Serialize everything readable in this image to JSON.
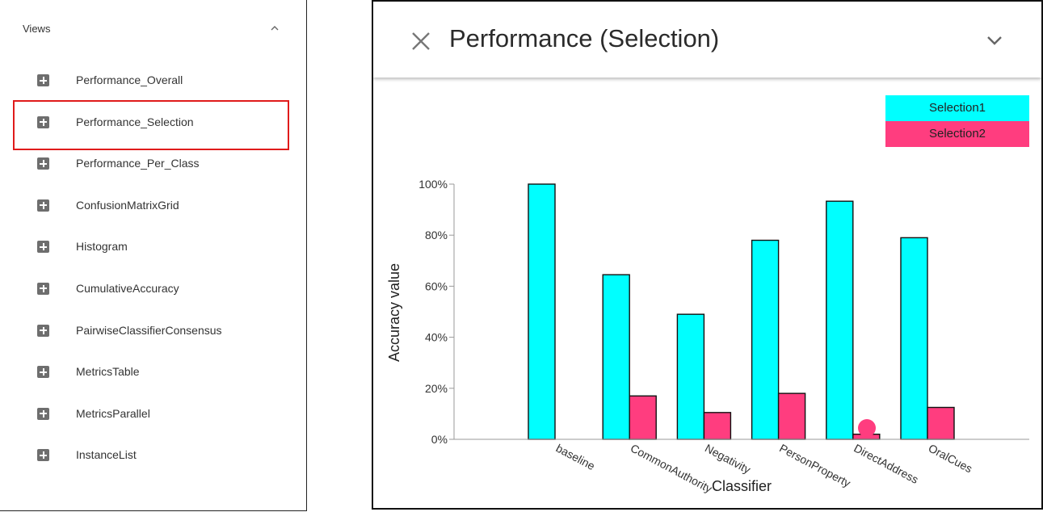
{
  "views_panel": {
    "title": "Views",
    "items": [
      {
        "label": "Performance_Overall"
      },
      {
        "label": "Performance_Selection"
      },
      {
        "label": "Performance_Per_Class"
      },
      {
        "label": "ConfusionMatrixGrid"
      },
      {
        "label": "Histogram"
      },
      {
        "label": "CumulativeAccuracy"
      },
      {
        "label": "PairwiseClassifierConsensus"
      },
      {
        "label": "MetricsTable"
      },
      {
        "label": "MetricsParallel"
      },
      {
        "label": "InstanceList"
      }
    ],
    "highlighted_item": "Performance_Selection"
  },
  "card": {
    "title": "Performance (Selection)",
    "close_icon": "close-icon",
    "collapse_icon": "chevron-down-icon"
  },
  "chart_data": {
    "type": "bar",
    "xlabel": "Classifier",
    "ylabel": "Accuracy value",
    "ylim": [
      0,
      100
    ],
    "yticks": [
      "0%",
      "20%",
      "40%",
      "60%",
      "80%",
      "100%"
    ],
    "categories": [
      "baseline",
      "CommonAuthority",
      "Negativity",
      "PersonProperty",
      "DirectAddress",
      "OralCues"
    ],
    "series": [
      {
        "name": "Selection1",
        "color": "#00ffff",
        "values": [
          100,
          64.5,
          49,
          78,
          93.3,
          79
        ]
      },
      {
        "name": "Selection2",
        "color": "#ff3d7f",
        "values": [
          0,
          17,
          10.5,
          18,
          2,
          12.5
        ]
      }
    ],
    "legend": "top-right",
    "grid": false
  }
}
